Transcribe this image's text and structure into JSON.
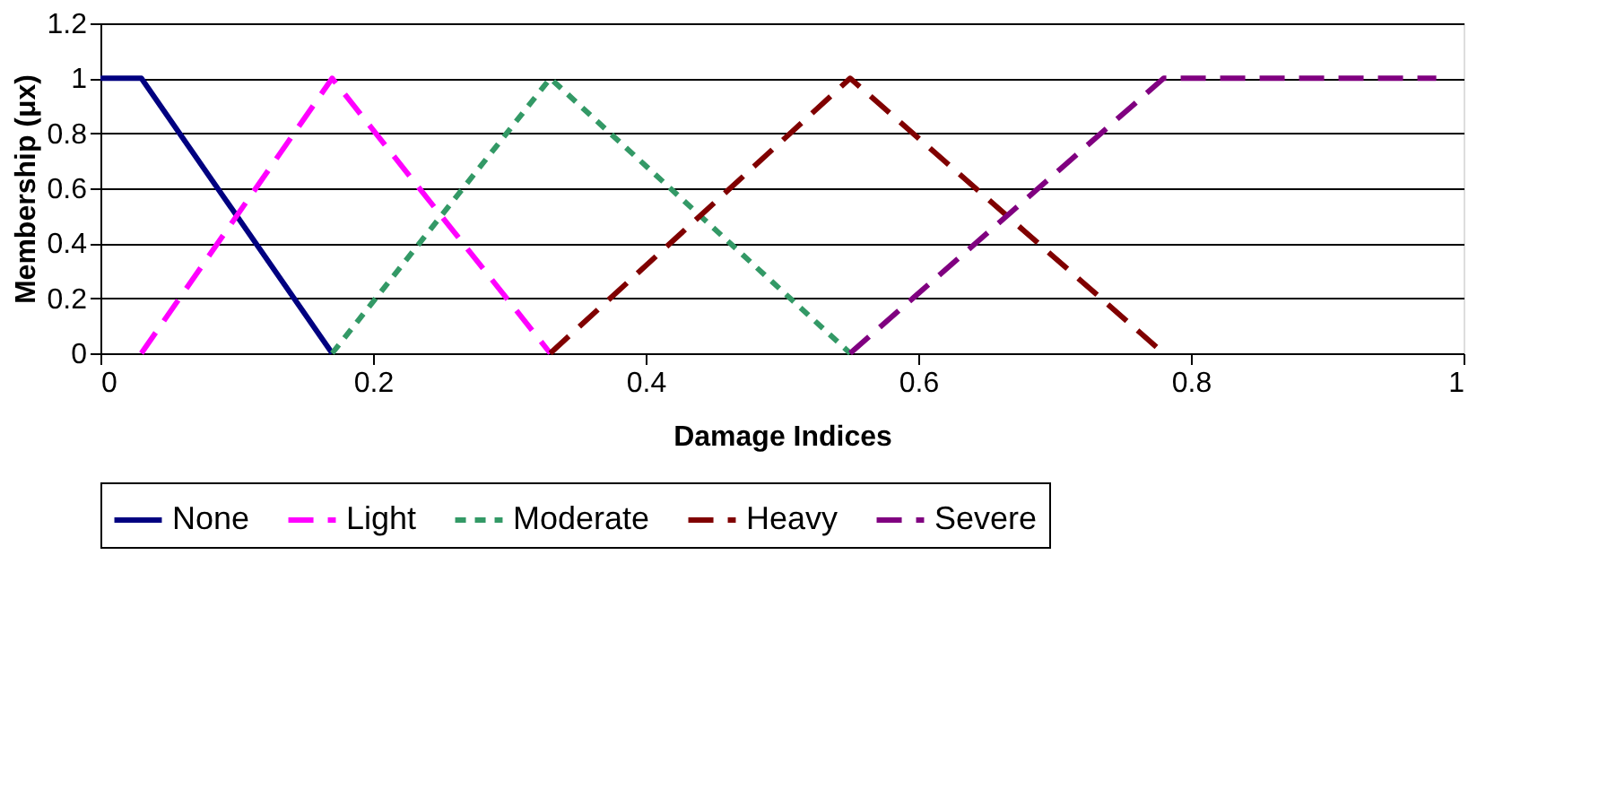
{
  "chart_data": {
    "type": "line",
    "xlabel": "Damage Indices",
    "ylabel": "Membership (μx)",
    "xlim": [
      0,
      1
    ],
    "xticks": [
      0,
      0.2,
      0.4,
      0.6,
      0.8,
      1
    ],
    "ylim": [
      0,
      1.2
    ],
    "yticks": [
      0,
      0.2,
      0.4,
      0.6,
      0.8,
      1,
      1.2
    ],
    "grid": "y",
    "legend": "bottom",
    "marker": "none",
    "series": [
      {
        "name": "None",
        "color": "#000080",
        "line_style": "solid",
        "x": [
          0,
          0.03,
          0.17
        ],
        "values": [
          1,
          1,
          0
        ]
      },
      {
        "name": "Light",
        "color": "#ff00ff",
        "line_style": "dashed",
        "x": [
          0.03,
          0.17,
          0.33
        ],
        "values": [
          0,
          1,
          0
        ]
      },
      {
        "name": "Moderate",
        "color": "#339966",
        "line_style": "dotted",
        "x": [
          0.17,
          0.33,
          0.55
        ],
        "values": [
          0,
          1,
          0
        ]
      },
      {
        "name": "Heavy",
        "color": "#800000",
        "line_style": "dashed",
        "x": [
          0.33,
          0.55,
          0.78
        ],
        "values": [
          0,
          1,
          0
        ]
      },
      {
        "name": "Severe",
        "color": "#800080",
        "line_style": "dashed",
        "x": [
          0.55,
          0.78,
          0.98
        ],
        "values": [
          0,
          1,
          1
        ]
      }
    ]
  }
}
